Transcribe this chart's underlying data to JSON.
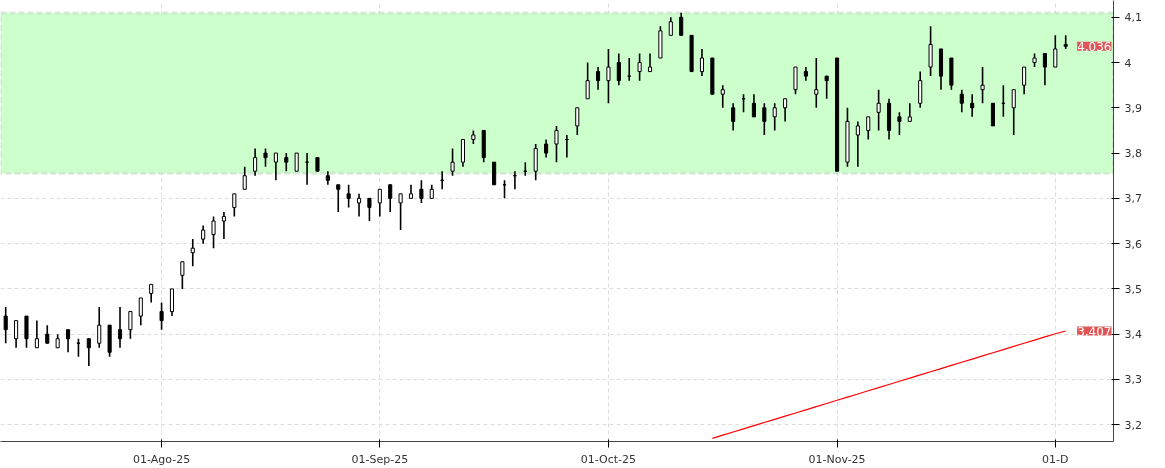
{
  "chart_data": {
    "type": "candlestick",
    "color": "#000000",
    "categories": [
      null,
      null,
      null,
      null,
      null,
      null,
      null,
      null,
      null,
      null,
      null,
      null,
      null,
      null,
      null,
      "01-Ago-25",
      null,
      null,
      null,
      null,
      null,
      null,
      null,
      null,
      null,
      null,
      null,
      null,
      null,
      null,
      null,
      null,
      null,
      null,
      null,
      null,
      "01-Sep-25",
      null,
      null,
      null,
      null,
      null,
      null,
      null,
      null,
      null,
      null,
      null,
      null,
      null,
      null,
      null,
      null,
      null,
      null,
      null,
      null,
      null,
      "01-Oct-25",
      null,
      null,
      null,
      null,
      null,
      null,
      null,
      null,
      null,
      null,
      null,
      null,
      null,
      null,
      null,
      null,
      null,
      null,
      null,
      null,
      null,
      "01-Nov-25",
      null,
      null,
      null,
      null,
      null,
      null,
      null,
      null,
      null,
      null,
      null,
      null,
      null,
      null,
      null,
      null,
      null,
      null,
      null,
      null,
      "01-D",
      null
    ],
    "ohlc": [
      [
        3.44,
        3.46,
        3.38,
        3.41
      ],
      [
        3.39,
        3.43,
        3.37,
        3.43
      ],
      [
        3.44,
        3.44,
        3.37,
        3.39
      ],
      [
        3.37,
        3.43,
        3.37,
        3.39
      ],
      [
        3.4,
        3.42,
        3.38,
        3.38
      ],
      [
        3.37,
        3.4,
        3.37,
        3.39
      ],
      [
        3.41,
        3.41,
        3.36,
        3.39
      ],
      [
        3.38,
        3.39,
        3.35,
        3.38
      ],
      [
        3.39,
        3.39,
        3.33,
        3.37
      ],
      [
        3.38,
        3.46,
        3.37,
        3.42
      ],
      [
        3.42,
        3.42,
        3.35,
        3.36
      ],
      [
        3.41,
        3.46,
        3.37,
        3.39
      ],
      [
        3.41,
        3.45,
        3.39,
        3.45
      ],
      [
        3.44,
        3.48,
        3.42,
        3.48
      ],
      [
        3.49,
        3.51,
        3.47,
        3.51
      ],
      [
        3.45,
        3.47,
        3.41,
        3.43
      ],
      [
        3.45,
        3.5,
        3.44,
        3.5
      ],
      [
        3.53,
        3.56,
        3.5,
        3.56
      ],
      [
        3.58,
        3.61,
        3.55,
        3.59
      ],
      [
        3.61,
        3.64,
        3.6,
        3.63
      ],
      [
        3.62,
        3.66,
        3.59,
        3.65
      ],
      [
        3.65,
        3.67,
        3.61,
        3.66
      ],
      [
        3.68,
        3.71,
        3.66,
        3.71
      ],
      [
        3.72,
        3.77,
        3.72,
        3.75
      ],
      [
        3.76,
        3.81,
        3.75,
        3.79
      ],
      [
        3.8,
        3.81,
        3.77,
        3.79
      ],
      [
        3.78,
        3.8,
        3.74,
        3.8
      ],
      [
        3.79,
        3.8,
        3.76,
        3.78
      ],
      [
        3.76,
        3.8,
        3.76,
        3.8
      ],
      [
        3.78,
        3.8,
        3.73,
        3.78
      ],
      [
        3.79,
        3.79,
        3.76,
        3.76
      ],
      [
        3.75,
        3.76,
        3.73,
        3.74
      ],
      [
        3.73,
        3.73,
        3.67,
        3.72
      ],
      [
        3.71,
        3.73,
        3.68,
        3.7
      ],
      [
        3.69,
        3.71,
        3.66,
        3.7
      ],
      [
        3.7,
        3.7,
        3.65,
        3.68
      ],
      [
        3.69,
        3.72,
        3.66,
        3.72
      ],
      [
        3.73,
        3.73,
        3.67,
        3.7
      ],
      [
        3.69,
        3.71,
        3.63,
        3.71
      ],
      [
        3.7,
        3.73,
        3.7,
        3.71
      ],
      [
        3.72,
        3.74,
        3.69,
        3.7
      ],
      [
        3.7,
        3.73,
        3.7,
        3.72
      ],
      [
        3.74,
        3.76,
        3.72,
        3.74
      ],
      [
        3.76,
        3.81,
        3.75,
        3.78
      ],
      [
        3.78,
        3.83,
        3.77,
        3.83
      ],
      [
        3.83,
        3.85,
        3.82,
        3.84
      ],
      [
        3.85,
        3.85,
        3.78,
        3.79
      ],
      [
        3.78,
        3.78,
        3.73,
        3.73
      ],
      [
        3.73,
        3.74,
        3.7,
        3.73
      ],
      [
        3.75,
        3.76,
        3.72,
        3.75
      ],
      [
        3.76,
        3.78,
        3.75,
        3.76
      ],
      [
        3.76,
        3.82,
        3.74,
        3.81
      ],
      [
        3.82,
        3.83,
        3.79,
        3.8
      ],
      [
        3.82,
        3.86,
        3.78,
        3.85
      ],
      [
        3.83,
        3.84,
        3.79,
        3.83
      ],
      [
        3.86,
        3.9,
        3.84,
        3.9
      ],
      [
        3.92,
        4.0,
        3.92,
        3.96
      ],
      [
        3.98,
        3.99,
        3.94,
        3.96
      ],
      [
        3.96,
        4.03,
        3.91,
        3.99
      ],
      [
        4.0,
        4.02,
        3.95,
        3.96
      ],
      [
        3.97,
        4.01,
        3.96,
        3.97
      ],
      [
        3.98,
        4.02,
        3.96,
        4.0
      ],
      [
        3.98,
        4.02,
        3.98,
        3.99
      ],
      [
        4.01,
        4.08,
        4.01,
        4.07
      ],
      [
        4.06,
        4.1,
        4.06,
        4.09
      ],
      [
        4.1,
        4.11,
        4.06,
        4.06
      ],
      [
        4.06,
        4.06,
        3.98,
        3.98
      ],
      [
        3.98,
        4.03,
        3.97,
        4.01
      ],
      [
        4.01,
        4.01,
        3.93,
        3.93
      ],
      [
        3.93,
        3.95,
        3.9,
        3.94
      ],
      [
        3.9,
        3.91,
        3.85,
        3.87
      ],
      [
        3.92,
        3.93,
        3.89,
        3.92
      ],
      [
        3.91,
        3.93,
        3.88,
        3.88
      ],
      [
        3.9,
        3.91,
        3.84,
        3.87
      ],
      [
        3.88,
        3.91,
        3.85,
        3.9
      ],
      [
        3.9,
        3.92,
        3.87,
        3.92
      ],
      [
        3.94,
        3.99,
        3.93,
        3.99
      ],
      [
        3.98,
        3.99,
        3.96,
        3.97
      ],
      [
        3.93,
        4.01,
        3.9,
        3.94
      ],
      [
        3.97,
        3.97,
        3.92,
        3.96
      ],
      [
        4.01,
        4.01,
        3.76,
        3.76
      ],
      [
        3.78,
        3.9,
        3.77,
        3.87
      ],
      [
        3.84,
        3.87,
        3.77,
        3.86
      ],
      [
        3.85,
        3.88,
        3.83,
        3.88
      ],
      [
        3.89,
        3.94,
        3.85,
        3.91
      ],
      [
        3.91,
        3.92,
        3.83,
        3.85
      ],
      [
        3.88,
        3.89,
        3.84,
        3.87
      ],
      [
        3.87,
        3.91,
        3.87,
        3.88
      ],
      [
        3.91,
        3.98,
        3.9,
        3.96
      ],
      [
        3.99,
        4.08,
        3.97,
        4.04
      ],
      [
        4.03,
        4.03,
        3.94,
        3.97
      ],
      [
        4.01,
        4.01,
        3.94,
        3.95
      ],
      [
        3.93,
        3.94,
        3.89,
        3.91
      ],
      [
        3.91,
        3.93,
        3.88,
        3.9
      ],
      [
        3.94,
        3.99,
        3.91,
        3.95
      ],
      [
        3.91,
        3.91,
        3.86,
        3.86
      ],
      [
        3.91,
        3.95,
        3.88,
        3.91
      ],
      [
        3.9,
        3.94,
        3.84,
        3.94
      ],
      [
        3.95,
        3.99,
        3.93,
        3.99
      ],
      [
        4.0,
        4.02,
        3.99,
        4.01
      ],
      [
        4.02,
        4.02,
        3.95,
        3.99
      ],
      [
        3.99,
        4.06,
        3.99,
        4.03
      ],
      [
        4.04,
        4.06,
        4.03,
        4.036
      ]
    ],
    "series": [
      {
        "type": "line",
        "color": "#ff0000",
        "values": [
          null,
          null,
          null,
          null,
          null,
          null,
          null,
          null,
          null,
          null,
          null,
          null,
          null,
          null,
          null,
          null,
          null,
          null,
          null,
          null,
          null,
          null,
          null,
          null,
          null,
          null,
          null,
          null,
          null,
          null,
          null,
          null,
          null,
          null,
          null,
          null,
          null,
          null,
          null,
          null,
          null,
          null,
          null,
          null,
          null,
          null,
          null,
          null,
          null,
          null,
          null,
          null,
          null,
          null,
          null,
          null,
          null,
          null,
          null,
          null,
          null,
          null,
          null,
          null,
          null,
          null,
          null,
          null,
          3.17,
          3.177,
          3.184,
          3.191,
          3.198,
          3.205,
          3.212,
          3.219,
          3.226,
          3.233,
          3.24,
          3.247,
          3.254,
          3.261,
          3.268,
          3.275,
          3.282,
          3.289,
          3.296,
          3.303,
          3.31,
          3.317,
          3.324,
          3.331,
          3.338,
          3.345,
          3.352,
          3.359,
          3.366,
          3.373,
          3.38,
          3.387,
          3.394,
          3.401,
          3.407
        ]
      }
    ],
    "ylim": [
      3.163,
      4.137
    ],
    "yticks": [
      {
        "value": 3.2,
        "label": "3,2"
      },
      {
        "value": 3.3,
        "label": "3,3"
      },
      {
        "value": 3.4,
        "label": "3,4"
      },
      {
        "value": 3.5,
        "label": "3,5"
      },
      {
        "value": 3.6,
        "label": "3,6"
      },
      {
        "value": 3.7,
        "label": "3,7"
      },
      {
        "value": 3.8,
        "label": "3,8"
      },
      {
        "value": 3.9,
        "label": "3,9"
      },
      4,
      {
        "value": 4.1,
        "label": "4,1"
      }
    ],
    "bands": [
      {
        "axis": "y",
        "from": 3.755,
        "to": 4.11,
        "color": "#ccffcc"
      }
    ],
    "annotations": [
      "4,036",
      "3,407"
    ],
    "grid": true
  }
}
